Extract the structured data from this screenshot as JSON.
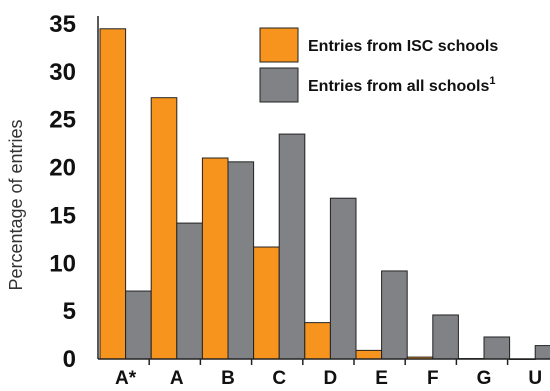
{
  "chart_data": {
    "type": "bar",
    "categories": [
      "A*",
      "A",
      "B",
      "C",
      "D",
      "E",
      "F",
      "G",
      "U"
    ],
    "series": [
      {
        "name": "Entries from ISC schools",
        "color": "#f7941d",
        "values": [
          34.5,
          27.3,
          21.0,
          11.7,
          3.8,
          0.9,
          0.2,
          0.05,
          0.0
        ]
      },
      {
        "name": "Entries from all schools",
        "superscript": "1",
        "color": "#808285",
        "values": [
          7.1,
          14.2,
          20.6,
          23.5,
          16.8,
          9.2,
          4.6,
          2.3,
          1.4
        ]
      }
    ],
    "ylabel": "Percentage of entries",
    "ylim": [
      0,
      35
    ],
    "yticks": [
      0,
      5,
      10,
      15,
      20,
      25,
      30,
      35
    ],
    "grid": false,
    "legend_position": "top-right"
  }
}
